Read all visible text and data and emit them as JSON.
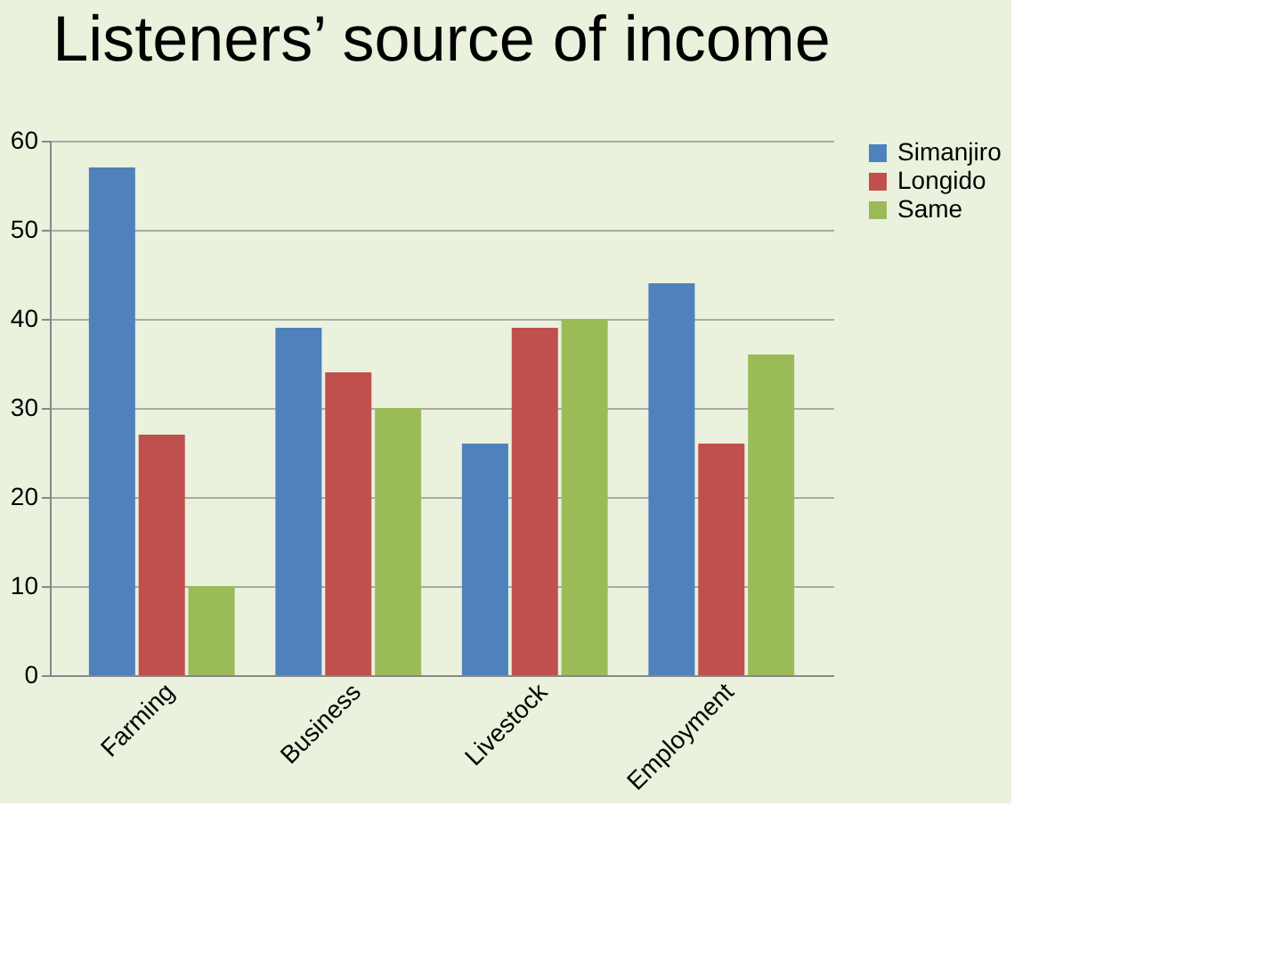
{
  "chart_data": {
    "type": "bar",
    "title": "Listeners’ source of income",
    "categories": [
      "Farming",
      "Business",
      "Livestock",
      "Employment"
    ],
    "series": [
      {
        "name": "Simanjiro",
        "color": "#4f81bd",
        "values": [
          57,
          39,
          26,
          44
        ]
      },
      {
        "name": "Longido",
        "color": "#c0504d",
        "values": [
          27,
          34,
          39,
          26
        ]
      },
      {
        "name": "Same",
        "color": "#9bbb59",
        "values": [
          10,
          30,
          40,
          36
        ]
      }
    ],
    "ylim": [
      0,
      60
    ],
    "yticks": [
      0,
      10,
      20,
      30,
      40,
      50,
      60
    ],
    "grid": "y",
    "legend": "right"
  }
}
